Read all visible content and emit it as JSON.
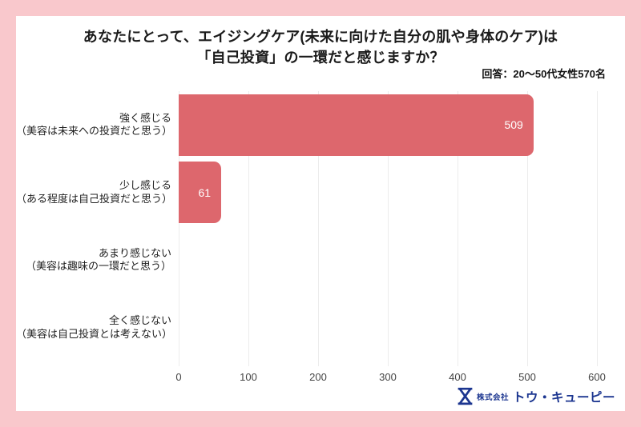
{
  "title": {
    "line1": "あなたにとって、エイジングケア(未来に向けた自分の肌や身体のケア)は",
    "line2": "「自己投資」の一環だと感じますか？"
  },
  "subtitle": "回答：20～50代女性570名",
  "footer": {
    "company_prefix": "株式会社",
    "company_name": "トウ・キューピー"
  },
  "colors": {
    "frame": "#f9c8cc",
    "bar": "#dd676d",
    "gridline": "#ececec",
    "value_label": "#ffffff",
    "logo_blue": "#1c3690"
  },
  "chart_data": {
    "type": "bar",
    "orientation": "horizontal",
    "title": "あなたにとって、エイジングケア(未来に向けた自分の肌や身体のケア)は「自己投資」の一環だと感じますか？",
    "subtitle": "回答：20～50代女性570名",
    "categories": [
      {
        "label": "強く感じる",
        "sublabel": "（美容は未来への投資だと思う）"
      },
      {
        "label": "少し感じる",
        "sublabel": "（ある程度は自己投資だと思う）"
      },
      {
        "label": "あまり感じない",
        "sublabel": "（美容は趣味の一環だと思う）"
      },
      {
        "label": "全く感じない",
        "sublabel": "（美容は自己投資とは考えない）"
      }
    ],
    "values": [
      509,
      61,
      0,
      0
    ],
    "xlim": [
      0,
      600
    ],
    "xticks": [
      0,
      100,
      200,
      300,
      400,
      500,
      600
    ],
    "grid": true,
    "legend": "none",
    "value_labels_shown_for_nonzero_only": true
  }
}
